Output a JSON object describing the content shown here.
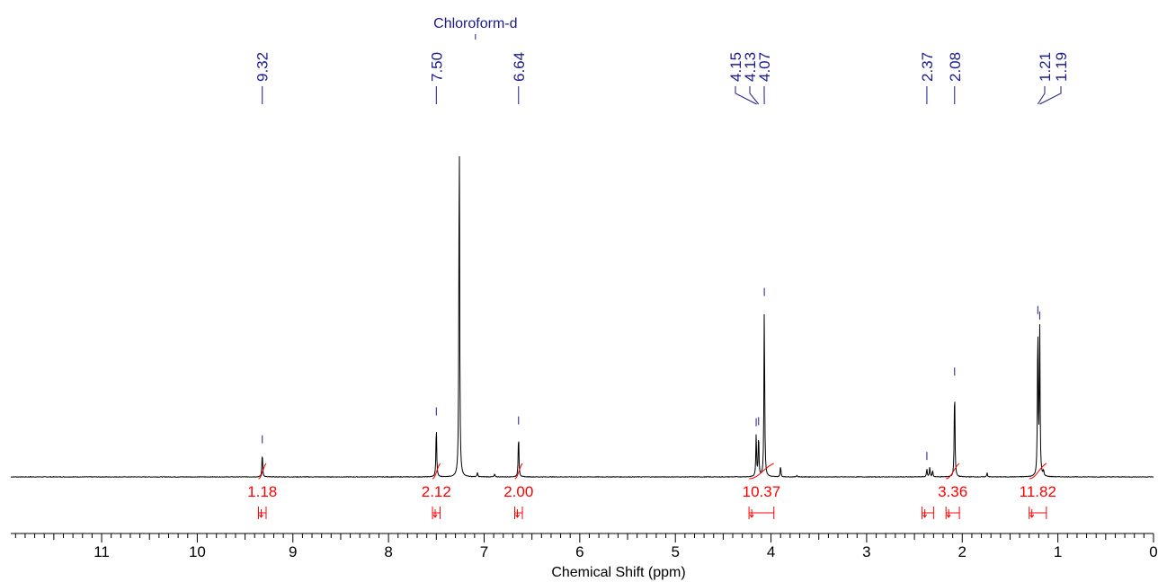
{
  "chart_data": {
    "type": "line",
    "title": "",
    "xlabel": "Chemical Shift (ppm)",
    "ylabel": "",
    "x_reversed": true,
    "xlim": [
      11.95,
      0
    ],
    "ylim": [
      0,
      1
    ],
    "x_ticks": [
      11,
      10,
      9,
      8,
      7,
      6,
      5,
      4,
      3,
      2,
      1,
      0
    ],
    "solvent_label": "Chloroform-d",
    "solvent_ppm": 7.26,
    "peak_labels": [
      {
        "text": "9.32",
        "ppm": 9.32
      },
      {
        "text": "7.50",
        "ppm": 7.5
      },
      {
        "text": "6.64",
        "ppm": 6.64
      },
      {
        "text": "4.15",
        "ppm": 4.15
      },
      {
        "text": "4.13",
        "ppm": 4.13
      },
      {
        "text": "4.07",
        "ppm": 4.07
      },
      {
        "text": "2.37",
        "ppm": 2.37
      },
      {
        "text": "2.08",
        "ppm": 2.08
      },
      {
        "text": "1.21",
        "ppm": 1.21
      },
      {
        "text": "1.19",
        "ppm": 1.19
      }
    ],
    "series": [
      {
        "peaks": [
          {
            "ppm": 9.32,
            "height": 0.068
          },
          {
            "ppm": 7.5,
            "height": 0.145
          },
          {
            "ppm": 7.26,
            "height": 1.0
          },
          {
            "ppm": 7.07,
            "height": 0.012
          },
          {
            "ppm": 6.89,
            "height": 0.008
          },
          {
            "ppm": 6.64,
            "height": 0.12
          },
          {
            "ppm": 4.155,
            "height": 0.115
          },
          {
            "ppm": 4.13,
            "height": 0.118
          },
          {
            "ppm": 4.07,
            "height": 0.475
          },
          {
            "ppm": 3.9,
            "height": 0.03
          },
          {
            "ppm": 3.73,
            "height": 0.005
          },
          {
            "ppm": 2.37,
            "height": 0.022
          },
          {
            "ppm": 2.34,
            "height": 0.028
          },
          {
            "ppm": 2.31,
            "height": 0.018
          },
          {
            "ppm": 2.08,
            "height": 0.255
          },
          {
            "ppm": 1.74,
            "height": 0.012
          },
          {
            "ppm": 1.21,
            "height": 0.425
          },
          {
            "ppm": 1.19,
            "height": 0.41
          },
          {
            "ppm": 1.15,
            "height": 0.015
          }
        ]
      }
    ],
    "integrals": [
      {
        "value": "1.18",
        "from": 9.36,
        "to": 9.28
      },
      {
        "value": "2.12",
        "from": 7.54,
        "to": 7.46
      },
      {
        "value": "2.00",
        "from": 6.68,
        "to": 6.6
      },
      {
        "value": "10.37",
        "from": 4.23,
        "to": 3.97
      },
      {
        "value": "3.36",
        "from": 2.17,
        "to": 2.03
      },
      {
        "value": "11.82",
        "from": 1.3,
        "to": 1.12
      }
    ],
    "extra_integral_ranges": [
      {
        "from": 2.42,
        "to": 2.3
      }
    ],
    "colors": {
      "spectrum": "#000000",
      "peak_label": "#1a1a8c",
      "integral": "#ff0000"
    }
  }
}
